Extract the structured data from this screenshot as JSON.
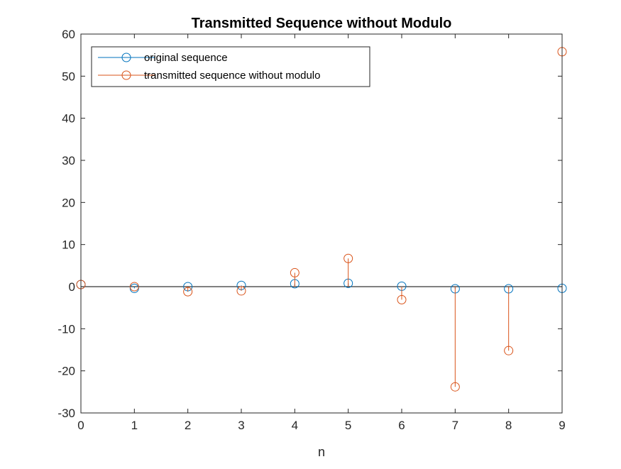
{
  "chart_data": {
    "type": "stem",
    "title": "Transmitted Sequence without Modulo",
    "xlabel": "n",
    "ylabel": "",
    "xlim": [
      0,
      9
    ],
    "ylim": [
      -30,
      60
    ],
    "xticks": [
      0,
      1,
      2,
      3,
      4,
      5,
      6,
      7,
      8,
      9
    ],
    "yticks": [
      -30,
      -20,
      -10,
      0,
      10,
      20,
      30,
      40,
      50,
      60
    ],
    "grid": false,
    "legend_position": "top-left",
    "series": [
      {
        "name": "original sequence",
        "color": "#0072BD",
        "x": [
          0,
          1,
          2,
          3,
          4,
          5,
          6,
          7,
          8,
          9
        ],
        "y": [
          0.5,
          -0.4,
          0.0,
          0.3,
          0.7,
          0.8,
          0.1,
          -0.5,
          -0.5,
          -0.4
        ]
      },
      {
        "name": "transmitted sequence without modulo",
        "color": "#D95319",
        "x": [
          0,
          1,
          2,
          3,
          4,
          5,
          6,
          7,
          8,
          9
        ],
        "y": [
          0.5,
          0.0,
          -1.2,
          -1.0,
          3.3,
          6.7,
          -3.1,
          -23.8,
          -15.2,
          55.8
        ]
      }
    ]
  }
}
